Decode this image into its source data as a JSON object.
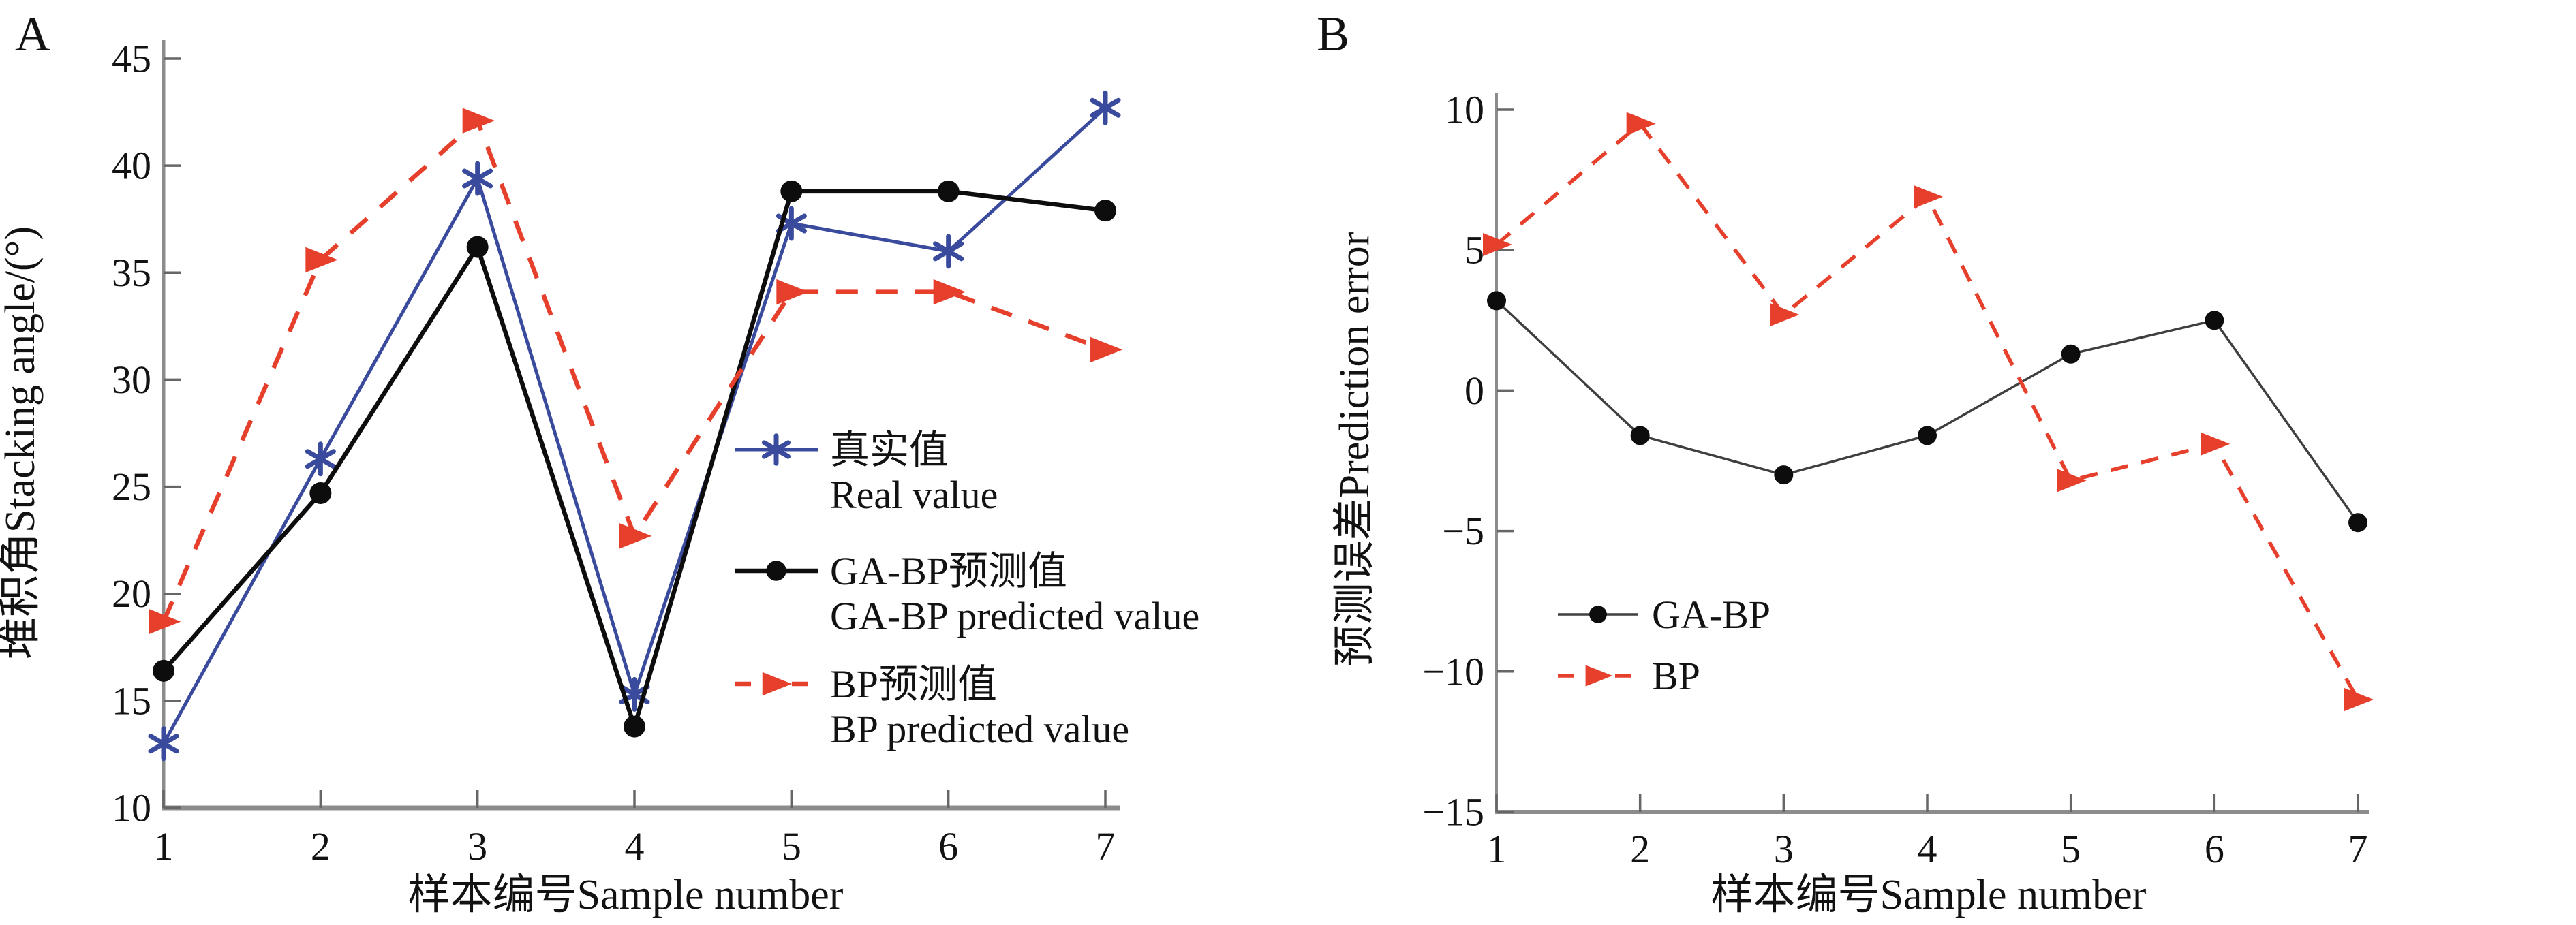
{
  "page": {
    "background": "#ffffff"
  },
  "panels": [
    {
      "label": "A"
    },
    {
      "label": "B"
    }
  ],
  "colors": {
    "real_blue": "#3a4b9d",
    "bp_red": "#e6402d",
    "gabp_black": "#0d0d0d",
    "gabp_gray_b": "#3f3f3f",
    "axis_gray": "#8c8c8c",
    "tick_gray": "#666666",
    "text_black": "#121212"
  },
  "chart_data": [
    {
      "type": "line",
      "panel": "A",
      "title": "",
      "xlabel": "样本编号Sample number",
      "ylabel": "堆积角Stacking angle/(°)",
      "x": [
        1,
        2,
        3,
        4,
        5,
        6,
        7
      ],
      "xticks": [
        1,
        2,
        3,
        4,
        5,
        6,
        7
      ],
      "yticks": [
        10,
        15,
        20,
        25,
        30,
        35,
        40,
        45
      ],
      "xlim": [
        1,
        7
      ],
      "ylim": [
        10,
        45
      ],
      "grid": false,
      "legend_position": "center-right-inside",
      "series": [
        {
          "name_zh": "真实值",
          "name_en": "Real value",
          "color": "#3a4b9d",
          "marker": "asterisk",
          "line": "solid",
          "values": [
            13.0,
            26.3,
            39.4,
            15.3,
            37.3,
            36.0,
            42.7
          ]
        },
        {
          "name_zh": "GA-BP预测值",
          "name_en": "GA-BP predicted value",
          "color": "#0d0d0d",
          "marker": "circle",
          "line": "solid",
          "values": [
            16.4,
            24.7,
            36.2,
            13.8,
            38.8,
            38.8,
            37.9
          ]
        },
        {
          "name_zh": "BP预测值",
          "name_en": "BP predicted value",
          "color": "#e6402d",
          "marker": "triangle-right",
          "line": "dashed",
          "values": [
            18.7,
            35.6,
            42.1,
            22.7,
            34.1,
            34.1,
            31.4
          ]
        }
      ]
    },
    {
      "type": "line",
      "panel": "B",
      "title": "",
      "xlabel": "样本编号Sample number",
      "ylabel": "预测误差Prediction error",
      "x": [
        1,
        2,
        3,
        4,
        5,
        6,
        7
      ],
      "xticks": [
        1,
        2,
        3,
        4,
        5,
        6,
        7
      ],
      "yticks": [
        -15,
        -10,
        -5,
        0,
        5,
        10
      ],
      "xlim": [
        1,
        7
      ],
      "ylim": [
        -15,
        10
      ],
      "grid": false,
      "legend_position": "center-left-inside",
      "series": [
        {
          "name_zh": "",
          "name_en": "GA-BP",
          "color": "#3f3f3f",
          "marker": "circle",
          "marker_color": "#0d0d0d",
          "line": "solid",
          "values": [
            3.2,
            -1.6,
            -3.0,
            -1.6,
            1.3,
            2.5,
            -4.7
          ]
        },
        {
          "name_zh": "",
          "name_en": "BP",
          "color": "#e6402d",
          "marker": "triangle-right",
          "line": "dashed",
          "values": [
            5.2,
            9.5,
            2.7,
            6.9,
            -3.2,
            -1.9,
            -11.0
          ]
        }
      ]
    }
  ]
}
